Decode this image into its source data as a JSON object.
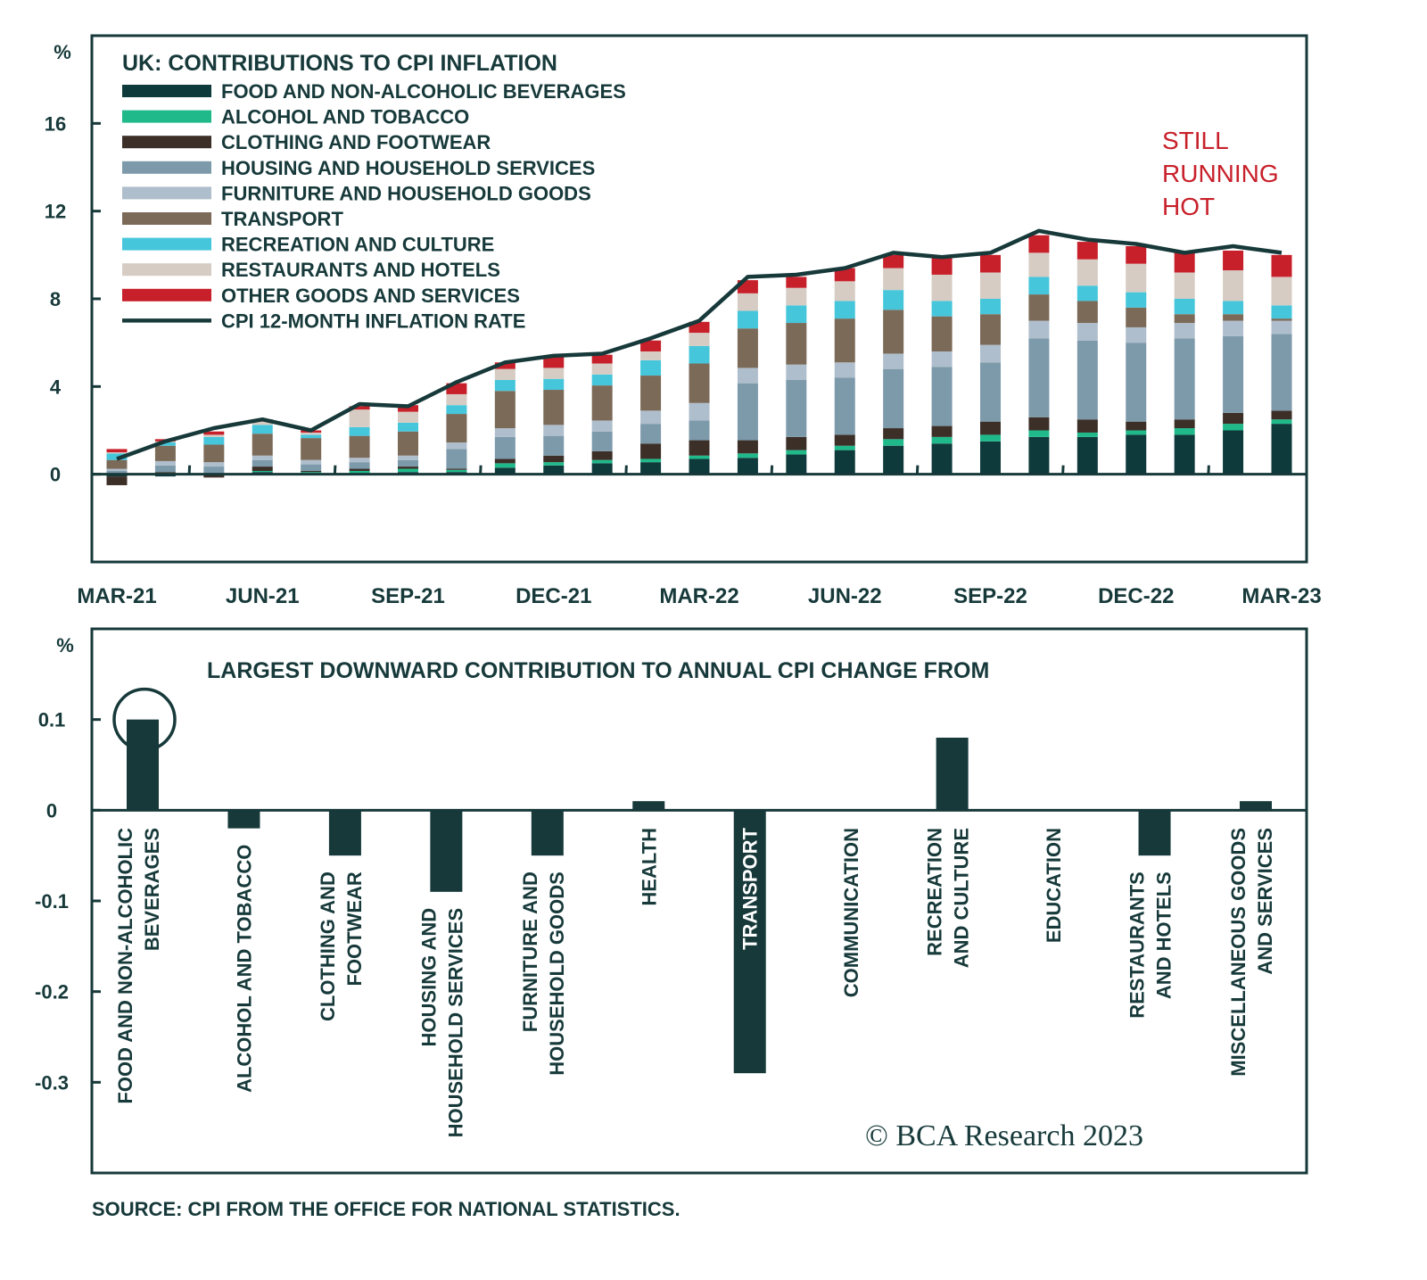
{
  "colors": {
    "ink": "#17393a",
    "food": "#0f3a3c",
    "alcohol": "#1fb98a",
    "clothing": "#3c2f28",
    "housing": "#7d9aab",
    "furniture": "#afbecc",
    "transport": "#7b6a58",
    "recreation": "#45c6db",
    "restaurants": "#d6ccc3",
    "other": "#c8202a",
    "annotation": "#c8202a"
  },
  "chart_data": [
    {
      "type": "bar",
      "stacked": true,
      "title": "UK: CONTRIBUTIONS TO CPI INFLATION",
      "ylabel": "%",
      "ylim": [
        -4,
        20
      ],
      "yticks": [
        "16",
        "12",
        "8",
        "4",
        "0"
      ],
      "ytick_values": [
        16,
        12,
        8,
        4,
        0
      ],
      "xtick_labels": [
        "MAR-21",
        "JUN-21",
        "SEP-21",
        "DEC-21",
        "MAR-22",
        "JUN-22",
        "SEP-22",
        "DEC-22",
        "MAR-23"
      ],
      "x": [
        "Mar-21",
        "Apr-21",
        "May-21",
        "Jun-21",
        "Jul-21",
        "Aug-21",
        "Sep-21",
        "Oct-21",
        "Nov-21",
        "Dec-21",
        "Jan-22",
        "Feb-22",
        "Mar-22",
        "Apr-22",
        "May-22",
        "Jun-22",
        "Jul-22",
        "Aug-22",
        "Sep-22",
        "Oct-22",
        "Nov-22",
        "Dec-22",
        "Jan-23",
        "Feb-23",
        "Mar-23"
      ],
      "annotation": [
        "STILL",
        "RUNNING",
        "HOT"
      ],
      "legend_position": "top-left",
      "series": [
        {
          "key": "food",
          "name": "FOOD AND NON-ALCOHOLIC BEVERAGES",
          "values": [
            -0.1,
            -0.1,
            -0.05,
            0.1,
            0.05,
            0.05,
            0.1,
            0.1,
            0.3,
            0.4,
            0.5,
            0.55,
            0.7,
            0.75,
            0.9,
            1.1,
            1.3,
            1.4,
            1.5,
            1.7,
            1.7,
            1.8,
            1.8,
            2.0,
            2.3
          ]
        },
        {
          "key": "alcohol",
          "name": "ALCOHOL AND TOBACCO",
          "values": [
            0.05,
            0.05,
            0.05,
            0.05,
            0.05,
            0.1,
            0.15,
            0.1,
            0.2,
            0.15,
            0.15,
            0.15,
            0.15,
            0.2,
            0.2,
            0.2,
            0.3,
            0.3,
            0.3,
            0.3,
            0.2,
            0.2,
            0.3,
            0.3,
            0.2
          ]
        },
        {
          "key": "clothing",
          "name": "CLOTHING AND FOOTWEAR",
          "values": [
            -0.4,
            0.05,
            -0.1,
            0.2,
            0.05,
            0.1,
            0.1,
            0.05,
            0.2,
            0.3,
            0.4,
            0.7,
            0.7,
            0.6,
            0.6,
            0.5,
            0.5,
            0.5,
            0.6,
            0.6,
            0.6,
            0.4,
            0.4,
            0.5,
            0.4
          ]
        },
        {
          "key": "housing",
          "name": "HOUSING AND HOUSEHOLD SERVICES",
          "values": [
            0.1,
            0.3,
            0.3,
            0.3,
            0.3,
            0.3,
            0.3,
            0.9,
            1.0,
            0.9,
            0.9,
            0.9,
            0.9,
            2.6,
            2.6,
            2.6,
            2.7,
            2.7,
            2.7,
            3.6,
            3.6,
            3.6,
            3.7,
            3.5,
            3.5
          ]
        },
        {
          "key": "furniture",
          "name": "FURNITURE AND HOUSEHOLD GOODS",
          "values": [
            0.1,
            0.2,
            0.2,
            0.2,
            0.2,
            0.2,
            0.2,
            0.3,
            0.4,
            0.5,
            0.5,
            0.6,
            0.8,
            0.7,
            0.7,
            0.7,
            0.7,
            0.7,
            0.8,
            0.8,
            0.8,
            0.7,
            0.7,
            0.7,
            0.6
          ]
        },
        {
          "key": "transport",
          "name": "TRANSPORT",
          "values": [
            0.4,
            0.7,
            0.8,
            1.0,
            1.0,
            1.0,
            1.1,
            1.3,
            1.7,
            1.6,
            1.6,
            1.6,
            1.8,
            1.8,
            1.9,
            2.0,
            2.0,
            1.6,
            1.4,
            1.2,
            1.0,
            0.9,
            0.4,
            0.3,
            0.1
          ]
        },
        {
          "key": "recreation",
          "name": "RECREATION AND CULTURE",
          "values": [
            0.3,
            0.15,
            0.35,
            0.4,
            0.15,
            0.4,
            0.4,
            0.4,
            0.5,
            0.5,
            0.5,
            0.7,
            0.8,
            0.8,
            0.8,
            0.8,
            0.9,
            0.7,
            0.7,
            0.8,
            0.7,
            0.7,
            0.7,
            0.6,
            0.6
          ]
        },
        {
          "key": "restaurants",
          "name": "RESTAURANTS AND HOTELS",
          "values": [
            0.05,
            0.05,
            0.1,
            0.15,
            0.1,
            0.8,
            0.5,
            0.5,
            0.5,
            0.5,
            0.5,
            0.4,
            0.6,
            0.8,
            0.8,
            0.9,
            1.0,
            1.2,
            1.2,
            1.1,
            1.2,
            1.3,
            1.2,
            1.4,
            1.3
          ]
        },
        {
          "key": "other",
          "name": "OTHER GOODS AND SERVICES",
          "values": [
            0.15,
            0.1,
            0.15,
            0.1,
            0.1,
            0.15,
            0.3,
            0.5,
            0.3,
            0.5,
            0.4,
            0.5,
            0.5,
            0.6,
            0.5,
            0.6,
            0.6,
            0.8,
            0.8,
            0.8,
            0.8,
            0.8,
            0.9,
            0.9,
            1.0
          ]
        }
      ],
      "line": {
        "name": "CPI 12-MONTH INFLATION RATE",
        "values": [
          0.7,
          1.5,
          2.1,
          2.5,
          2.0,
          3.2,
          3.1,
          4.2,
          5.1,
          5.4,
          5.5,
          6.2,
          7.0,
          9.0,
          9.1,
          9.4,
          10.1,
          9.9,
          10.1,
          11.1,
          10.7,
          10.5,
          10.1,
          10.4,
          10.1
        ]
      }
    },
    {
      "type": "bar",
      "title": "LARGEST DOWNWARD CONTRIBUTION TO ANNUAL CPI CHANGE FROM",
      "ylabel": "%",
      "ylim": [
        -0.4,
        0.2
      ],
      "yticks": [
        "0.1",
        "0",
        "-0.1",
        "-0.2",
        "-0.3"
      ],
      "ytick_values": [
        0.1,
        0,
        -0.1,
        -0.2,
        -0.3
      ],
      "categories": [
        [
          "FOOD AND NON-ALCOHOLIC",
          "BEVERAGES"
        ],
        [
          "ALCOHOL AND TOBACCO"
        ],
        [
          "CLOTHING AND",
          "FOOTWEAR"
        ],
        [
          "HOUSING AND",
          "HOUSEHOLD SERVICES"
        ],
        [
          "FURNITURE AND",
          "HOUSEHOLD GOODS"
        ],
        [
          "HEALTH"
        ],
        [
          "TRANSPORT"
        ],
        [
          "COMMUNICATION"
        ],
        [
          "RECREATION",
          "AND CULTURE"
        ],
        [
          "EDUCATION"
        ],
        [
          "RESTAURANTS",
          "AND HOTELS"
        ],
        [
          "MISCELLANEOUS GOODS",
          "AND SERVICES"
        ]
      ],
      "values": [
        0.1,
        -0.02,
        -0.05,
        -0.09,
        -0.05,
        0.01,
        -0.29,
        0.0,
        0.08,
        0.0,
        -0.05,
        0.01
      ],
      "highlighted_index": 0
    }
  ],
  "copyright": "© BCA Research 2023",
  "source": "SOURCE: CPI FROM THE OFFICE FOR NATIONAL STATISTICS."
}
